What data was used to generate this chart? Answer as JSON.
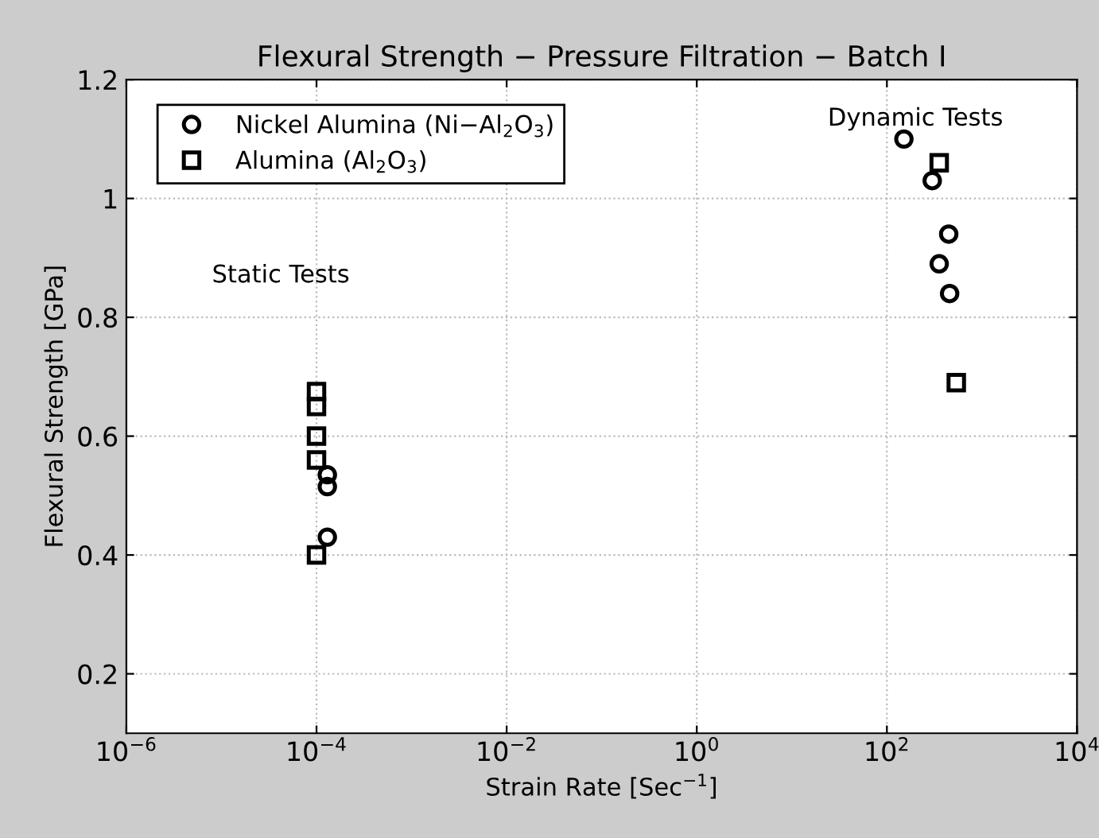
{
  "chart_data": {
    "type": "scatter",
    "title": "Flexural Strength − Pressure Filtration − Batch I",
    "xlabel": "Strain Rate [Sec$^{−1}$]",
    "ylabel": "Flexural Strength [GPa]",
    "log": "x",
    "xlim": [
      1e-06,
      10000
    ],
    "ylim": [
      0.1,
      1.2
    ],
    "xticks": [
      {
        "value": 1e-06,
        "label": "10$^{−6}$"
      },
      {
        "value": 0.0001,
        "label": "10$^{−4}$"
      },
      {
        "value": 0.01,
        "label": "10$^{−2}$"
      },
      {
        "value": 1,
        "label": "10$^{0}$"
      },
      {
        "value": 100,
        "label": "10$^{2}$"
      },
      {
        "value": 10000,
        "label": "10$^{4}$"
      }
    ],
    "yticks": [
      0.2,
      0.4,
      0.6,
      0.8,
      1,
      1.2
    ],
    "grid": true,
    "legend": "top left",
    "annotations": [
      "Static Tests",
      "Dynamic Tests"
    ],
    "series": [
      {
        "name": "Nickel Alumina (Ni−Al$_{2}$O$_{3}$)",
        "color": "#000000",
        "marker": "circle",
        "x": [
          0.00013,
          0.00013,
          0.00013,
          151,
          300,
          447,
          355,
          457
        ],
        "values": [
          0.535,
          0.515,
          0.43,
          1.1,
          1.03,
          0.94,
          0.89,
          0.84
        ]
      },
      {
        "name": "Alumina (Al$_{2}$O$_{3}$)",
        "color": "#000000",
        "marker": "square",
        "x": [
          0.0001,
          0.0001,
          0.0001,
          0.0001,
          0.0001,
          355,
          537
        ],
        "values": [
          0.675,
          0.65,
          0.6,
          0.56,
          0.4,
          1.06,
          0.69
        ]
      }
    ]
  }
}
